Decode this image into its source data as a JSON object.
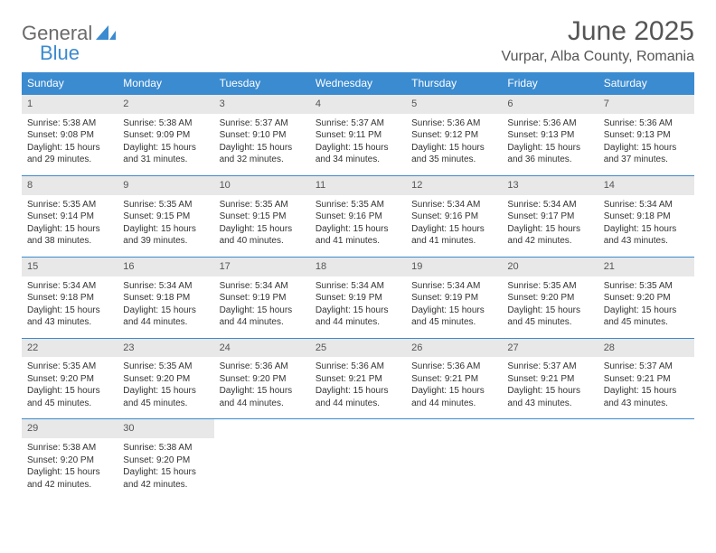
{
  "logo": {
    "word1": "General",
    "word2": "Blue"
  },
  "header": {
    "title": "June 2025",
    "location": "Vurpar, Alba County, Romania"
  },
  "colors": {
    "header_bg": "#3b8bd0",
    "header_text": "#ffffff",
    "daynum_bg": "#e8e8e8",
    "border": "#3b8bd0",
    "title_color": "#555555",
    "body_text": "#333333",
    "logo_gray": "#6a6a6a",
    "logo_blue": "#3b8bd0",
    "page_bg": "#ffffff"
  },
  "typography": {
    "title_fontsize": 30,
    "subtitle_fontsize": 16,
    "dayheader_fontsize": 12,
    "daynum_fontsize": 11,
    "body_fontsize": 10,
    "font_family": "Arial"
  },
  "calendar": {
    "columns": [
      "Sunday",
      "Monday",
      "Tuesday",
      "Wednesday",
      "Thursday",
      "Friday",
      "Saturday"
    ],
    "first_weekday_index": 0,
    "days": [
      {
        "n": 1,
        "sunrise": "5:38 AM",
        "sunset": "9:08 PM",
        "daylight": "15 hours and 29 minutes."
      },
      {
        "n": 2,
        "sunrise": "5:38 AM",
        "sunset": "9:09 PM",
        "daylight": "15 hours and 31 minutes."
      },
      {
        "n": 3,
        "sunrise": "5:37 AM",
        "sunset": "9:10 PM",
        "daylight": "15 hours and 32 minutes."
      },
      {
        "n": 4,
        "sunrise": "5:37 AM",
        "sunset": "9:11 PM",
        "daylight": "15 hours and 34 minutes."
      },
      {
        "n": 5,
        "sunrise": "5:36 AM",
        "sunset": "9:12 PM",
        "daylight": "15 hours and 35 minutes."
      },
      {
        "n": 6,
        "sunrise": "5:36 AM",
        "sunset": "9:13 PM",
        "daylight": "15 hours and 36 minutes."
      },
      {
        "n": 7,
        "sunrise": "5:36 AM",
        "sunset": "9:13 PM",
        "daylight": "15 hours and 37 minutes."
      },
      {
        "n": 8,
        "sunrise": "5:35 AM",
        "sunset": "9:14 PM",
        "daylight": "15 hours and 38 minutes."
      },
      {
        "n": 9,
        "sunrise": "5:35 AM",
        "sunset": "9:15 PM",
        "daylight": "15 hours and 39 minutes."
      },
      {
        "n": 10,
        "sunrise": "5:35 AM",
        "sunset": "9:15 PM",
        "daylight": "15 hours and 40 minutes."
      },
      {
        "n": 11,
        "sunrise": "5:35 AM",
        "sunset": "9:16 PM",
        "daylight": "15 hours and 41 minutes."
      },
      {
        "n": 12,
        "sunrise": "5:34 AM",
        "sunset": "9:16 PM",
        "daylight": "15 hours and 41 minutes."
      },
      {
        "n": 13,
        "sunrise": "5:34 AM",
        "sunset": "9:17 PM",
        "daylight": "15 hours and 42 minutes."
      },
      {
        "n": 14,
        "sunrise": "5:34 AM",
        "sunset": "9:18 PM",
        "daylight": "15 hours and 43 minutes."
      },
      {
        "n": 15,
        "sunrise": "5:34 AM",
        "sunset": "9:18 PM",
        "daylight": "15 hours and 43 minutes."
      },
      {
        "n": 16,
        "sunrise": "5:34 AM",
        "sunset": "9:18 PM",
        "daylight": "15 hours and 44 minutes."
      },
      {
        "n": 17,
        "sunrise": "5:34 AM",
        "sunset": "9:19 PM",
        "daylight": "15 hours and 44 minutes."
      },
      {
        "n": 18,
        "sunrise": "5:34 AM",
        "sunset": "9:19 PM",
        "daylight": "15 hours and 44 minutes."
      },
      {
        "n": 19,
        "sunrise": "5:34 AM",
        "sunset": "9:19 PM",
        "daylight": "15 hours and 45 minutes."
      },
      {
        "n": 20,
        "sunrise": "5:35 AM",
        "sunset": "9:20 PM",
        "daylight": "15 hours and 45 minutes."
      },
      {
        "n": 21,
        "sunrise": "5:35 AM",
        "sunset": "9:20 PM",
        "daylight": "15 hours and 45 minutes."
      },
      {
        "n": 22,
        "sunrise": "5:35 AM",
        "sunset": "9:20 PM",
        "daylight": "15 hours and 45 minutes."
      },
      {
        "n": 23,
        "sunrise": "5:35 AM",
        "sunset": "9:20 PM",
        "daylight": "15 hours and 45 minutes."
      },
      {
        "n": 24,
        "sunrise": "5:36 AM",
        "sunset": "9:20 PM",
        "daylight": "15 hours and 44 minutes."
      },
      {
        "n": 25,
        "sunrise": "5:36 AM",
        "sunset": "9:21 PM",
        "daylight": "15 hours and 44 minutes."
      },
      {
        "n": 26,
        "sunrise": "5:36 AM",
        "sunset": "9:21 PM",
        "daylight": "15 hours and 44 minutes."
      },
      {
        "n": 27,
        "sunrise": "5:37 AM",
        "sunset": "9:21 PM",
        "daylight": "15 hours and 43 minutes."
      },
      {
        "n": 28,
        "sunrise": "5:37 AM",
        "sunset": "9:21 PM",
        "daylight": "15 hours and 43 minutes."
      },
      {
        "n": 29,
        "sunrise": "5:38 AM",
        "sunset": "9:20 PM",
        "daylight": "15 hours and 42 minutes."
      },
      {
        "n": 30,
        "sunrise": "5:38 AM",
        "sunset": "9:20 PM",
        "daylight": "15 hours and 42 minutes."
      }
    ],
    "labels": {
      "sunrise_prefix": "Sunrise: ",
      "sunset_prefix": "Sunset: ",
      "daylight_prefix": "Daylight: "
    }
  }
}
